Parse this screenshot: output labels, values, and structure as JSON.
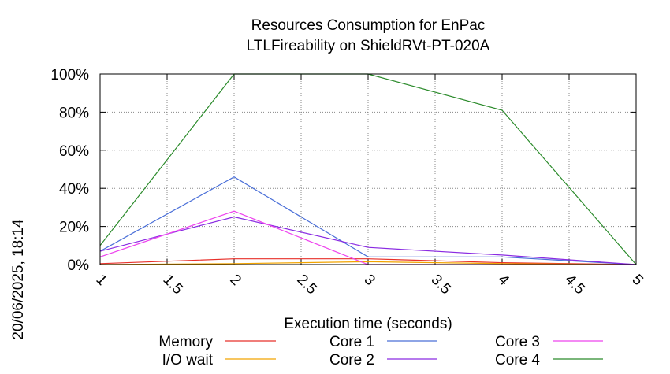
{
  "chart_data": {
    "type": "line",
    "title": "Resources Consumption for EnPac",
    "subtitle": "LTLFireability on ShieldRVt-PT-020A",
    "xlabel": "Execution time (seconds)",
    "ylabel": "",
    "timestamp": "20/06/2025, 18:14",
    "xlim": [
      1,
      5
    ],
    "ylim": [
      0,
      100
    ],
    "x_ticks": [
      "1",
      "1.5",
      "2",
      "2.5",
      "3",
      "3.5",
      "4",
      "4.5",
      "5"
    ],
    "y_ticks": [
      "0%",
      "20%",
      "40%",
      "60%",
      "80%",
      "100%"
    ],
    "grid": true,
    "legend_position": "bottom",
    "series": [
      {
        "name": "Memory",
        "color": "#e8302a",
        "x": [
          1,
          2,
          3,
          4,
          5
        ],
        "y": [
          0.5,
          3,
          3,
          1,
          0
        ]
      },
      {
        "name": "I/O wait",
        "color": "#f2a400",
        "x": [
          1,
          2,
          3,
          4,
          5
        ],
        "y": [
          0,
          0.5,
          1.5,
          0.5,
          0
        ]
      },
      {
        "name": "Core 1",
        "color": "#4a6fd8",
        "x": [
          1,
          2,
          3,
          4,
          5
        ],
        "y": [
          7,
          46,
          4,
          4,
          0
        ]
      },
      {
        "name": "Core 2",
        "color": "#8a2be2",
        "x": [
          1,
          2,
          3,
          4,
          5
        ],
        "y": [
          7,
          25,
          9,
          5,
          0
        ]
      },
      {
        "name": "Core 3",
        "color": "#ee44ee",
        "x": [
          1,
          2,
          3,
          4,
          5
        ],
        "y": [
          4,
          28,
          0,
          0,
          0
        ]
      },
      {
        "name": "Core 4",
        "color": "#2a8a2a",
        "x": [
          1,
          2,
          3,
          4,
          5
        ],
        "y": [
          10,
          100,
          100,
          81,
          0
        ]
      }
    ]
  }
}
